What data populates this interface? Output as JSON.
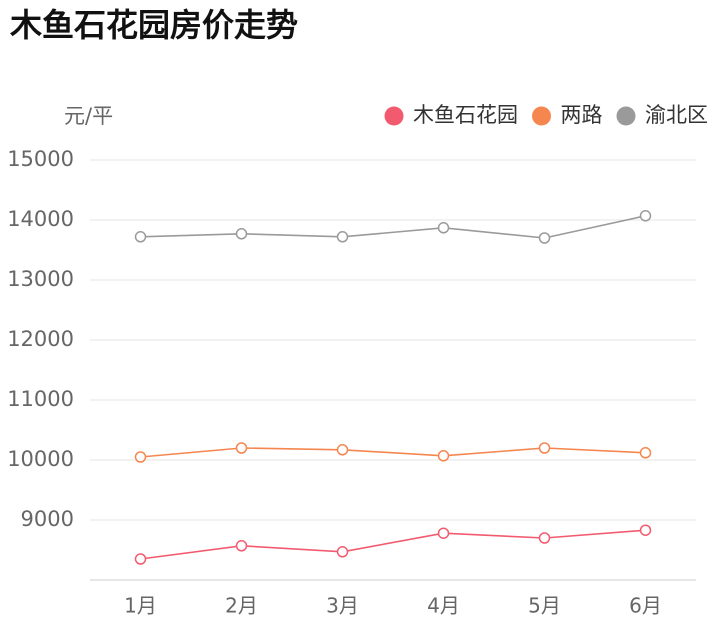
{
  "chart_data": {
    "type": "line",
    "title": "木鱼石花园房价走势",
    "y_label": "元/平",
    "categories": [
      "1月",
      "2月",
      "3月",
      "4月",
      "5月",
      "6月"
    ],
    "series": [
      {
        "name": "木鱼石花园",
        "color": "#f25b6f",
        "values": [
          8350,
          8570,
          8470,
          8780,
          8700,
          8830
        ]
      },
      {
        "name": "两路",
        "color": "#f5864f",
        "values": [
          10050,
          10200,
          10170,
          10070,
          10200,
          10120
        ]
      },
      {
        "name": "渝北区",
        "color": "#9a9a9a",
        "values": [
          13720,
          13770,
          13720,
          13870,
          13700,
          14070
        ]
      }
    ],
    "ylim": [
      8000,
      15000
    ],
    "yticks": [
      9000,
      10000,
      11000,
      12000,
      13000,
      14000,
      15000
    ],
    "grid": true
  }
}
